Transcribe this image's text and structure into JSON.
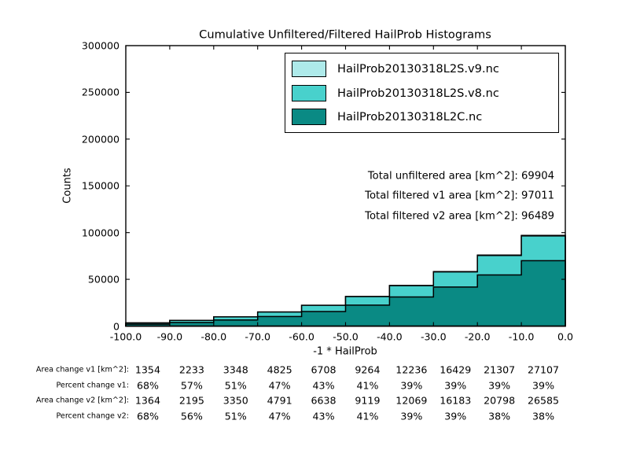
{
  "title": "Cumulative Unfiltered/Filtered HailProb Histograms",
  "axes": {
    "ylabel": "Counts",
    "xlabel": "-1 * HailProb",
    "y_ticks": [
      "0",
      "50000",
      "100000",
      "150000",
      "200000",
      "250000",
      "300000"
    ],
    "x_ticks": [
      "-100.0",
      "-90.0",
      "-80.0",
      "-70.0",
      "-60.0",
      "-50.0",
      "-40.0",
      "-30.0",
      "-20.0",
      "-10.0",
      "0.0"
    ]
  },
  "legend": {
    "entries": [
      {
        "label": "HailProb20130318L2S.v9.nc",
        "color": "#aeeaea"
      },
      {
        "label": "HailProb20130318L2S.v8.nc",
        "color": "#48d1cc"
      },
      {
        "label": "HailProb20130318L2C.nc",
        "color": "#0a8a84"
      }
    ]
  },
  "annotations": {
    "lines": [
      "Total unfiltered area [km^2]: 69904",
      "Total filtered v1 area [km^2]: 97011",
      "Total filtered v2 area [km^2]: 96489"
    ]
  },
  "chart_data": {
    "type": "area",
    "subtype": "cumulative-step-histogram",
    "title": "Cumulative Unfiltered/Filtered HailProb Histograms",
    "xlabel": "-1 * HailProb",
    "ylabel": "Counts",
    "xlim": [
      -100,
      0
    ],
    "ylim": [
      0,
      300000
    ],
    "grid": false,
    "legend_position": "upper right",
    "bin_edges": [
      -100,
      -90,
      -80,
      -70,
      -60,
      -50,
      -40,
      -30,
      -20,
      -10,
      0
    ],
    "edgecolor": "#000000",
    "series": [
      {
        "name": "HailProb20130318L2S.v9.nc",
        "color": "#aeeaea",
        "cumulative_counts": [
          3354,
          6153,
          9915,
          15055,
          22228,
          31684,
          43396,
          58239,
          75987,
          97011
        ]
      },
      {
        "name": "HailProb20130318L2S.v8.nc",
        "color": "#48d1cc",
        "cumulative_counts": [
          3364,
          6115,
          9917,
          15021,
          22158,
          31539,
          43229,
          57993,
          75478,
          96489
        ]
      },
      {
        "name": "HailProb20130318L2C.nc",
        "color": "#0a8a84",
        "cumulative_counts": [
          2000,
          3920,
          6567,
          10230,
          15520,
          22420,
          31160,
          41810,
          54680,
          69904
        ]
      }
    ],
    "totals": {
      "unfiltered_area_km2": 69904,
      "filtered_v1_area_km2": 97011,
      "filtered_v2_area_km2": 96489
    }
  },
  "table": {
    "rows": [
      {
        "label": "Area change v1 [km^2]:",
        "values": [
          "1354",
          "2233",
          "3348",
          "4825",
          "6708",
          "9264",
          "12236",
          "16429",
          "21307",
          "27107"
        ]
      },
      {
        "label": "Percent change v1:",
        "values": [
          "68%",
          "57%",
          "51%",
          "47%",
          "43%",
          "41%",
          "39%",
          "39%",
          "39%",
          "39%"
        ]
      },
      {
        "label": "Area change v2 [km^2]:",
        "values": [
          "1364",
          "2195",
          "3350",
          "4791",
          "6638",
          "9119",
          "12069",
          "16183",
          "20798",
          "26585"
        ]
      },
      {
        "label": "Percent change v2:",
        "values": [
          "68%",
          "56%",
          "51%",
          "47%",
          "43%",
          "41%",
          "39%",
          "39%",
          "38%",
          "38%"
        ]
      }
    ]
  }
}
